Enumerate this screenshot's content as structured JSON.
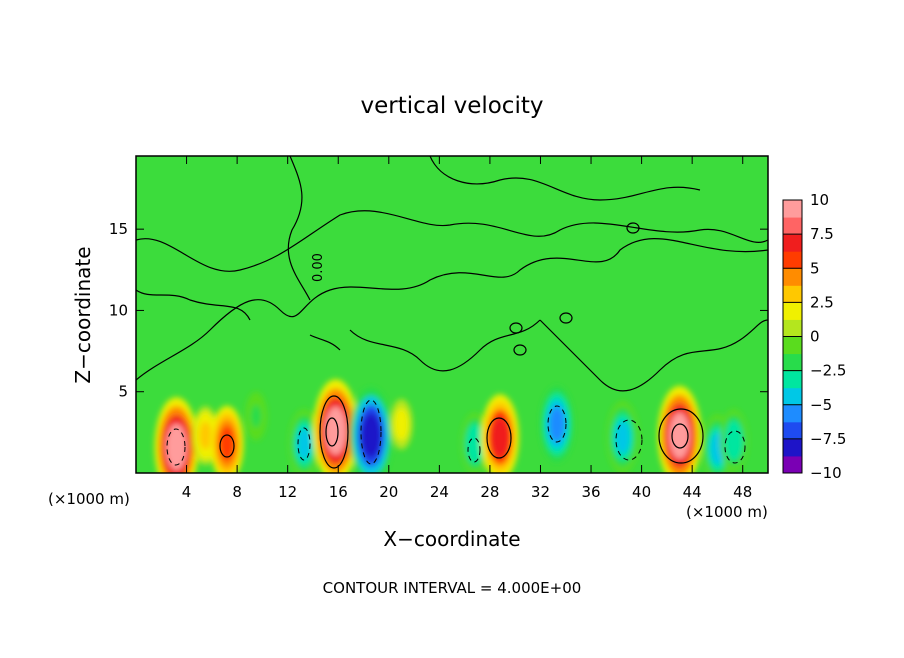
{
  "chart_data": {
    "type": "heatmap",
    "title": "vertical velocity",
    "xlabel": "X−coordinate",
    "ylabel": "Z−coordinate",
    "x_unit_left": "(×1000 m)",
    "x_unit_right": "(×1000 m)",
    "footer": "CONTOUR INTERVAL = 4.000E+00",
    "contour_label": "0.00",
    "xlim": [
      0,
      50
    ],
    "ylim": [
      0,
      19.5
    ],
    "x_ticks": [
      4,
      8,
      12,
      16,
      20,
      24,
      28,
      32,
      36,
      40,
      44,
      48
    ],
    "y_ticks": [
      5,
      10,
      15
    ],
    "colorbar": {
      "min": -10,
      "max": 10,
      "ticks": [
        10,
        7.5,
        5,
        2.5,
        0,
        -2.5,
        -5,
        -7.5,
        -10
      ],
      "tick_labels": [
        "10",
        "7.5",
        "5",
        "2.5",
        "0",
        "−2.5",
        "−5",
        "−7.5",
        "−10"
      ],
      "colors": [
        "#7a00b4",
        "#1e14c8",
        "#1e4bf0",
        "#1e8cff",
        "#00c8e6",
        "#00e6a0",
        "#28dc4b",
        "#5adc1e",
        "#b4e61e",
        "#f0f000",
        "#ffc800",
        "#ff8c00",
        "#ff3c00",
        "#f01e1e",
        "#ff6464",
        "#ff9c9c"
      ]
    },
    "cells": [
      {
        "x": 3.2,
        "z": 1.6,
        "w": 9.0
      },
      {
        "x": 5.5,
        "z": 2.3,
        "w": 3.0
      },
      {
        "x": 7.2,
        "z": 1.8,
        "w": 5.5
      },
      {
        "x": 9.5,
        "z": 3.5,
        "w": -1.5
      },
      {
        "x": 13.3,
        "z": 1.8,
        "w": -4.5
      },
      {
        "x": 15.8,
        "z": 2.6,
        "w": 9.5
      },
      {
        "x": 18.6,
        "z": 2.3,
        "w": -8.5
      },
      {
        "x": 21.0,
        "z": 3.0,
        "w": 1.8
      },
      {
        "x": 26.8,
        "z": 1.8,
        "w": -3.5
      },
      {
        "x": 28.8,
        "z": 2.2,
        "w": 7.0
      },
      {
        "x": 33.3,
        "z": 3.0,
        "w": -5.5
      },
      {
        "x": 38.5,
        "z": 2.2,
        "w": -5.0
      },
      {
        "x": 43.0,
        "z": 2.3,
        "w": 9.0
      },
      {
        "x": 46.0,
        "z": 1.5,
        "w": -4.5
      },
      {
        "x": 47.3,
        "z": 2.0,
        "w": -3.5
      }
    ]
  }
}
